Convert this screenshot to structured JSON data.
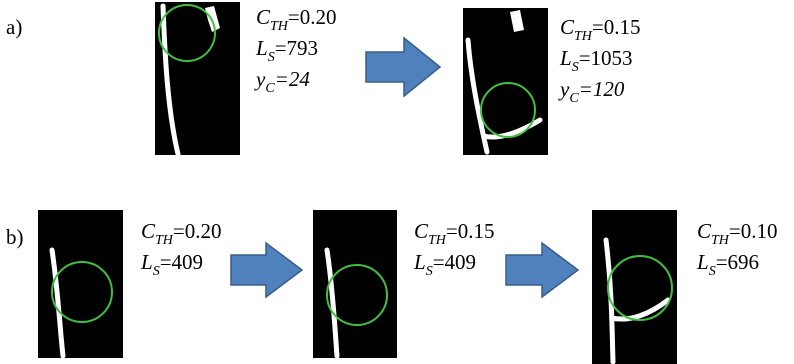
{
  "panels": [
    {
      "label": "a)",
      "frames": [
        {
          "params": [
            {
              "symbol": "C",
              "subscript": "TH",
              "value": "=0.20"
            },
            {
              "symbol": "L",
              "subscript": "S",
              "value": "=793"
            },
            {
              "symbol": "y",
              "subscript": "C",
              "value": "=24",
              "italic": true
            }
          ]
        },
        {
          "params": [
            {
              "symbol": "C",
              "subscript": "TH",
              "value": "=0.15"
            },
            {
              "symbol": "L",
              "subscript": "S",
              "value": "=1053"
            },
            {
              "symbol": "y",
              "subscript": "C",
              "value": "=120",
              "italic": true
            }
          ]
        }
      ]
    },
    {
      "label": "b)",
      "frames": [
        {
          "params": [
            {
              "symbol": "C",
              "subscript": "TH",
              "value": "=0.20"
            },
            {
              "symbol": "L",
              "subscript": "S",
              "value": "=409"
            }
          ]
        },
        {
          "params": [
            {
              "symbol": "C",
              "subscript": "TH",
              "value": "=0.15"
            },
            {
              "symbol": "L",
              "subscript": "S",
              "value": "=409"
            }
          ]
        },
        {
          "params": [
            {
              "symbol": "C",
              "subscript": "TH",
              "value": "=0.10"
            },
            {
              "symbol": "L",
              "subscript": "S",
              "value": "=696"
            }
          ]
        }
      ]
    }
  ]
}
